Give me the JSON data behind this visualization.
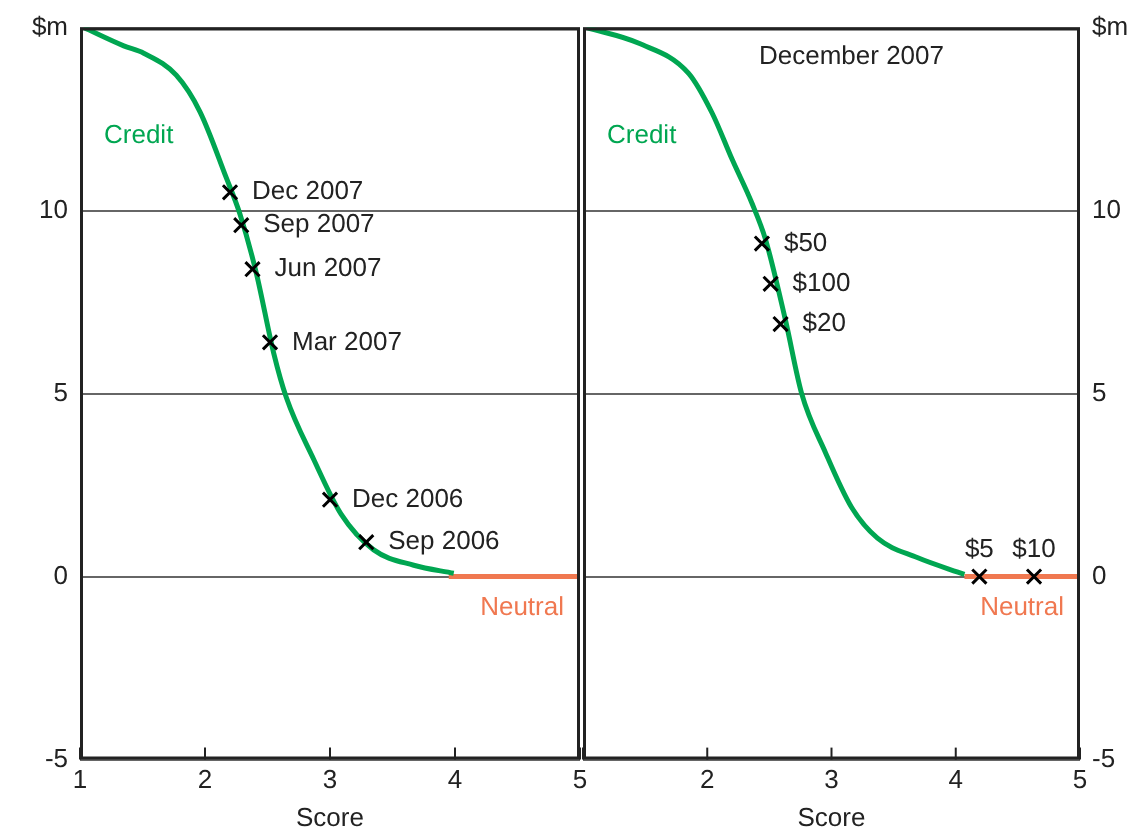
{
  "chart_data": [
    {
      "type": "line",
      "xlabel": "Score",
      "xlim": [
        1,
        5
      ],
      "xticks": [
        1,
        2,
        3,
        4,
        5
      ],
      "ylim": [
        -5,
        15
      ],
      "yticks": [
        -5,
        0,
        5,
        10,
        {
          "value": 15,
          "label": "$m"
        }
      ],
      "grid": "y",
      "legend": false,
      "series": [
        {
          "name": "Credit",
          "type": "line",
          "color": "#00a651",
          "marker": "none",
          "x": [
            1.03,
            1.35,
            1.51,
            1.77,
            1.96,
            2.17,
            2.28,
            2.41,
            2.55,
            2.65,
            2.87,
            3.09,
            3.35,
            3.67,
            3.99
          ],
          "values": [
            15.0,
            14.5,
            14.3,
            13.7,
            12.7,
            10.9,
            9.9,
            8.3,
            6.1,
            4.9,
            3.2,
            1.7,
            0.73,
            0.31,
            0.09
          ]
        },
        {
          "name": "Neutral",
          "type": "line",
          "color": "#f07850",
          "marker": "none",
          "x": [
            3.95,
            5
          ],
          "values": [
            0,
            0
          ]
        },
        {
          "type": "scatter",
          "color": "#000000",
          "marker": "cross",
          "x": [
            2.2,
            2.29,
            2.38,
            2.52,
            3.0,
            3.29
          ],
          "values": [
            10.5,
            9.6,
            8.4,
            6.4,
            2.1,
            0.94
          ]
        }
      ],
      "annotations": [
        {
          "text": "Dec 2007",
          "x": 2.2,
          "y": 10.5
        },
        {
          "text": "Sep 2007",
          "x": 2.29,
          "y": 9.6
        },
        {
          "text": "Jun 2007",
          "x": 2.38,
          "y": 8.4
        },
        {
          "text": "Mar 2007",
          "x": 2.52,
          "y": 6.4
        },
        {
          "text": "Dec 2006",
          "x": 3.0,
          "y": 2.1
        },
        {
          "text": "Sep 2006",
          "x": 3.29,
          "y": 0.94
        }
      ]
    },
    {
      "type": "line",
      "xlabel": "Score",
      "xlim": [
        1,
        5
      ],
      "xticks": [
        {
          "value": 1,
          "label": null
        },
        2,
        3,
        4,
        5
      ],
      "ylim": [
        -5,
        15
      ],
      "yticks": [
        -5,
        0,
        5,
        10,
        {
          "value": 15,
          "label": "$m"
        }
      ],
      "grid": "y",
      "legend": false,
      "series": [
        {
          "name": "Credit",
          "type": "line",
          "color": "#00a651",
          "marker": "none",
          "x": [
            1.03,
            1.45,
            1.85,
            2.04,
            2.2,
            2.36,
            2.47,
            2.63,
            2.76,
            2.95,
            3.16,
            3.37,
            3.69,
            4.07
          ],
          "values": [
            15.0,
            14.57,
            13.75,
            12.66,
            11.4,
            10.2,
            9.2,
            7.0,
            5.0,
            3.4,
            1.9,
            1.05,
            0.52,
            0.06
          ]
        },
        {
          "name": "Neutral",
          "type": "line",
          "color": "#f07850",
          "marker": "none",
          "x": [
            4.07,
            5
          ],
          "values": [
            0,
            0
          ]
        },
        {
          "type": "scatter",
          "color": "#000000",
          "marker": "cross",
          "x": [
            2.44,
            2.51,
            2.59,
            4.19,
            4.63
          ],
          "values": [
            9.1,
            8.0,
            6.9,
            0,
            0
          ]
        }
      ],
      "annotations": [
        "December 2007",
        {
          "text": "$50",
          "x": 2.44,
          "y": 9.1
        },
        {
          "text": "$100",
          "x": 2.51,
          "y": 8.0
        },
        {
          "text": "$20",
          "x": 2.59,
          "y": 6.9
        },
        {
          "text": "$5",
          "x": 4.19,
          "y": 0
        },
        {
          "text": "$10",
          "x": 4.63,
          "y": 0
        }
      ]
    }
  ]
}
